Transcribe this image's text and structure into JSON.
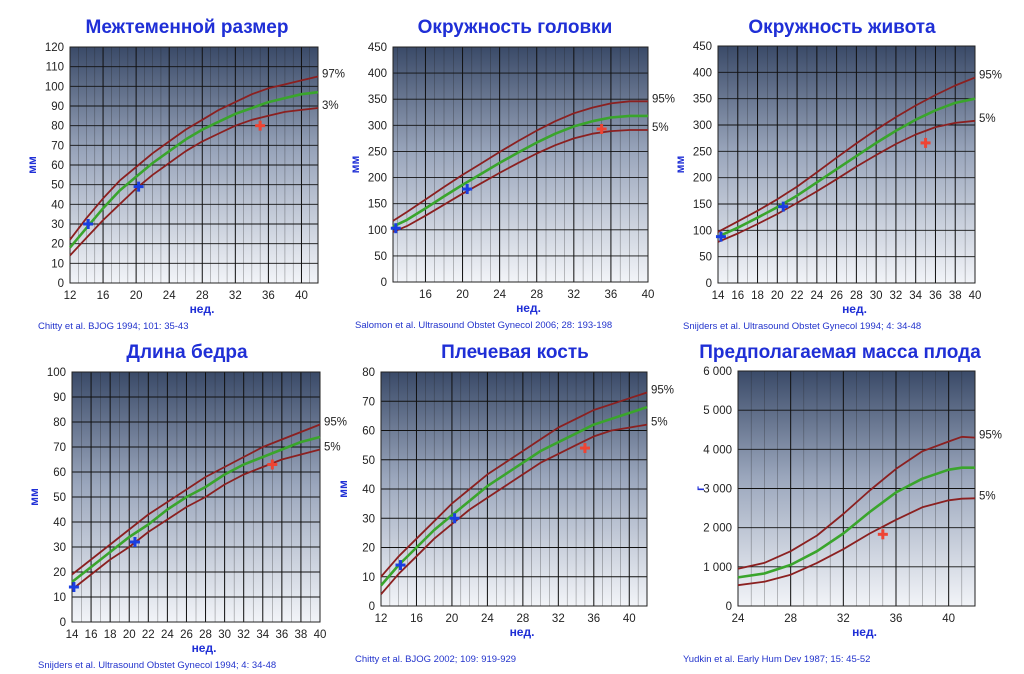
{
  "colors": {
    "title": "#1f2fd6",
    "plot_bg_top": "#3a4a68",
    "plot_bg_bottom": "#f2f4f8",
    "grid": "#111111",
    "percentile_line": "#8b2020",
    "median_line": "#3aa52c",
    "marker_early": "#1a3fe0",
    "marker_late": "#ee4433"
  },
  "chart_data": [
    {
      "type": "line",
      "title": "Межтеменной размер",
      "xlabel": "нед.",
      "ylabel": "мм",
      "xlim": [
        12,
        42
      ],
      "ylim": [
        0,
        120
      ],
      "xticks": [
        "12",
        "16",
        "20",
        "24",
        "28",
        "32",
        "36",
        "40"
      ],
      "yticks": [
        "0",
        "10",
        "20",
        "30",
        "40",
        "50",
        "60",
        "70",
        "80",
        "90",
        "100",
        "110",
        "120"
      ],
      "grid": true,
      "citation": "Chitty et al. BJOG 1994; 101: 35-43",
      "upper_label": "97%",
      "lower_label": "3%",
      "x": [
        12,
        14,
        16,
        18,
        20,
        22,
        24,
        26,
        28,
        30,
        32,
        34,
        36,
        38,
        40,
        42
      ],
      "series": [
        {
          "role": "upper",
          "values": [
            22,
            33,
            43,
            52,
            59,
            66,
            72,
            78,
            83,
            88,
            92,
            96,
            99,
            101,
            103,
            105
          ]
        },
        {
          "role": "median",
          "values": [
            18,
            28,
            38,
            47,
            54,
            61,
            67,
            73,
            78,
            82,
            86,
            89,
            92,
            94,
            96,
            97
          ]
        },
        {
          "role": "lower",
          "values": [
            14,
            23,
            32,
            40,
            48,
            55,
            61,
            67,
            72,
            76,
            80,
            83,
            85,
            87,
            88,
            89
          ]
        }
      ],
      "markers": [
        {
          "x": 14.2,
          "y": 30,
          "color": "marker_early"
        },
        {
          "x": 20.3,
          "y": 49,
          "color": "marker_early"
        },
        {
          "x": 35.0,
          "y": 80,
          "color": "marker_late"
        }
      ]
    },
    {
      "type": "line",
      "title": "Окружность головки",
      "xlabel": "нед.",
      "ylabel": "мм",
      "xlim": [
        12.5,
        40
      ],
      "ylim": [
        0,
        450
      ],
      "xticks": [
        "16",
        "20",
        "24",
        "28",
        "32",
        "36",
        "40"
      ],
      "yticks": [
        "0",
        "50",
        "100",
        "150",
        "200",
        "250",
        "300",
        "350",
        "400",
        "450"
      ],
      "grid": true,
      "citation": "Salomon et al. Ultrasound Obstet Gynecol 2006; 28: 193-198",
      "upper_label": "95%",
      "lower_label": "5%",
      "x": [
        12.5,
        14,
        16,
        18,
        20,
        22,
        24,
        26,
        28,
        30,
        32,
        34,
        36,
        38,
        40
      ],
      "series": [
        {
          "role": "upper",
          "values": [
            117,
            134,
            158,
            182,
            205,
            227,
            249,
            270,
            290,
            308,
            323,
            334,
            342,
            346,
            346
          ]
        },
        {
          "role": "median",
          "values": [
            106,
            119,
            141,
            164,
            186,
            207,
            228,
            248,
            267,
            284,
            298,
            308,
            315,
            318,
            318
          ]
        },
        {
          "role": "lower",
          "values": [
            96,
            107,
            127,
            148,
            169,
            189,
            209,
            228,
            246,
            262,
            275,
            284,
            289,
            291,
            291
          ]
        }
      ],
      "markers": [
        {
          "x": 12.8,
          "y": 103,
          "color": "marker_early"
        },
        {
          "x": 20.5,
          "y": 178,
          "color": "marker_early"
        },
        {
          "x": 35.0,
          "y": 293,
          "color": "marker_late"
        }
      ]
    },
    {
      "type": "line",
      "title": "Окружность живота",
      "xlabel": "нед.",
      "ylabel": "мм",
      "xlim": [
        14,
        40
      ],
      "ylim": [
        0,
        450
      ],
      "xticks": [
        "14",
        "16",
        "18",
        "20",
        "22",
        "24",
        "26",
        "28",
        "30",
        "32",
        "34",
        "36",
        "38",
        "40"
      ],
      "yticks": [
        "0",
        "50",
        "100",
        "150",
        "200",
        "250",
        "300",
        "350",
        "400",
        "450"
      ],
      "grid": true,
      "citation": "Snijders et al. Ultrasound Obstet Gynecol 1994; 4: 34-48",
      "upper_label": "95%",
      "lower_label": "5%",
      "x": [
        14,
        16,
        18,
        20,
        22,
        24,
        26,
        28,
        30,
        32,
        34,
        36,
        38,
        40
      ],
      "series": [
        {
          "role": "upper",
          "values": [
            97,
            117,
            137,
            159,
            183,
            210,
            238,
            265,
            291,
            315,
            337,
            357,
            375,
            390
          ]
        },
        {
          "role": "median",
          "values": [
            88,
            105,
            124,
            144,
            166,
            191,
            216,
            241,
            266,
            289,
            310,
            328,
            342,
            350
          ]
        },
        {
          "role": "lower",
          "values": [
            78,
            94,
            112,
            131,
            152,
            174,
            197,
            221,
            243,
            264,
            282,
            296,
            304,
            308
          ]
        }
      ],
      "markers": [
        {
          "x": 14.3,
          "y": 88,
          "color": "marker_early"
        },
        {
          "x": 20.6,
          "y": 145,
          "color": "marker_early"
        },
        {
          "x": 35.0,
          "y": 266,
          "color": "marker_late"
        }
      ]
    },
    {
      "type": "line",
      "title": "Длина бедра",
      "xlabel": "нед.",
      "ylabel": "мм",
      "xlim": [
        14,
        40
      ],
      "ylim": [
        0,
        100
      ],
      "xticks": [
        "14",
        "16",
        "18",
        "20",
        "22",
        "24",
        "26",
        "28",
        "30",
        "32",
        "34",
        "36",
        "38",
        "40"
      ],
      "yticks": [
        "0",
        "10",
        "20",
        "30",
        "40",
        "50",
        "60",
        "70",
        "80",
        "90",
        "100"
      ],
      "grid": true,
      "citation": "Snijders et al. Ultrasound Obstet Gynecol 1994; 4: 34-48",
      "upper_label": "95%",
      "lower_label": "5%",
      "x": [
        14,
        16,
        18,
        20,
        22,
        24,
        26,
        28,
        30,
        32,
        34,
        36,
        38,
        40
      ],
      "series": [
        {
          "role": "upper",
          "values": [
            19,
            25,
            31,
            37,
            43,
            48,
            53,
            58,
            62,
            66,
            70,
            73,
            76,
            79
          ]
        },
        {
          "role": "median",
          "values": [
            16,
            22,
            28,
            34,
            39,
            45,
            50,
            54,
            59,
            63,
            66,
            69,
            72,
            74
          ]
        },
        {
          "role": "lower",
          "values": [
            13,
            19,
            25,
            30,
            36,
            41,
            46,
            50,
            55,
            59,
            62,
            65,
            67,
            69
          ]
        }
      ],
      "markers": [
        {
          "x": 14.2,
          "y": 14,
          "color": "marker_early"
        },
        {
          "x": 20.6,
          "y": 32,
          "color": "marker_early"
        },
        {
          "x": 35.0,
          "y": 63,
          "color": "marker_late"
        }
      ]
    },
    {
      "type": "line",
      "title": "Плечевая кость",
      "xlabel": "нед.",
      "ylabel": "мм",
      "xlim": [
        12,
        42
      ],
      "ylim": [
        0,
        80
      ],
      "xticks": [
        "12",
        "16",
        "20",
        "24",
        "28",
        "32",
        "36",
        "40"
      ],
      "yticks": [
        "0",
        "10",
        "20",
        "30",
        "40",
        "50",
        "60",
        "70",
        "80"
      ],
      "grid": true,
      "citation": "Chitty et al. BJOG 2002; 109: 919-929",
      "upper_label": "95%",
      "lower_label": "5%",
      "x": [
        12,
        14,
        16,
        18,
        20,
        22,
        24,
        26,
        28,
        30,
        32,
        34,
        36,
        38,
        40,
        42
      ],
      "series": [
        {
          "role": "upper",
          "values": [
            10,
            17,
            23,
            29,
            35,
            40,
            45,
            49,
            53,
            57,
            61,
            64,
            67,
            69,
            71,
            73
          ]
        },
        {
          "role": "median",
          "values": [
            7,
            14,
            20,
            26,
            31,
            36,
            41,
            45,
            49,
            53,
            56,
            59,
            62,
            64,
            66,
            68
          ]
        },
        {
          "role": "lower",
          "values": [
            4,
            11,
            17,
            23,
            28,
            33,
            37,
            41,
            45,
            49,
            52,
            55,
            58,
            60,
            61,
            62
          ]
        }
      ],
      "markers": [
        {
          "x": 14.2,
          "y": 14,
          "color": "marker_early"
        },
        {
          "x": 20.3,
          "y": 30,
          "color": "marker_early"
        },
        {
          "x": 35.0,
          "y": 54,
          "color": "marker_late"
        }
      ]
    },
    {
      "type": "line",
      "title": "Предполагаемая масса плода",
      "xlabel": "нед.",
      "ylabel": "г",
      "xlim": [
        24,
        42
      ],
      "ylim": [
        0,
        6000
      ],
      "xticks": [
        "24",
        "28",
        "32",
        "36",
        "40"
      ],
      "yticks": [
        "0",
        "1 000",
        "2 000",
        "3 000",
        "4 000",
        "5 000",
        "6 000"
      ],
      "grid": true,
      "citation": "Yudkin et al. Early Hum Dev 1987; 15: 45-52",
      "upper_label": "95%",
      "lower_label": "5%",
      "x": [
        24,
        26,
        28,
        30,
        32,
        34,
        36,
        38,
        40,
        41,
        42
      ],
      "series": [
        {
          "role": "upper",
          "values": [
            950,
            1100,
            1400,
            1800,
            2350,
            2950,
            3500,
            3950,
            4200,
            4320,
            4300
          ]
        },
        {
          "role": "median",
          "values": [
            730,
            830,
            1050,
            1400,
            1850,
            2400,
            2900,
            3250,
            3480,
            3530,
            3530
          ]
        },
        {
          "role": "lower",
          "values": [
            530,
            620,
            800,
            1100,
            1450,
            1850,
            2200,
            2520,
            2700,
            2740,
            2750
          ]
        }
      ],
      "markers": [
        {
          "x": 35.0,
          "y": 1830,
          "color": "marker_late"
        }
      ]
    }
  ]
}
